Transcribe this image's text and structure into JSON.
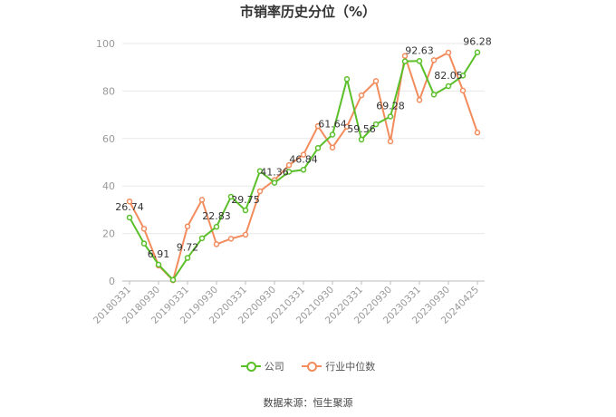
{
  "colors": {
    "company": "#5bbf2a",
    "industry": "#f28c5d",
    "grid": "#e8e8e8",
    "axis": "#bbbbbb",
    "text": "#999999"
  },
  "chart_data": {
    "type": "line",
    "title": "市销率历史分位（%）",
    "ylim": [
      0,
      100
    ],
    "yticks": [
      0,
      20,
      40,
      60,
      80,
      100
    ],
    "tick_labels": [
      "20180331",
      "20180930",
      "20190331",
      "20190930",
      "20200331",
      "20200930",
      "20210331",
      "20210930",
      "20220331",
      "20220930",
      "20230331",
      "20230930",
      "20240425"
    ],
    "series": [
      {
        "name": "公司",
        "values": [
          26.74,
          15.8,
          6.91,
          0.5,
          9.72,
          18.0,
          22.83,
          35.5,
          29.75,
          46.3,
          41.36,
          46.0,
          46.84,
          56.0,
          61.64,
          85.0,
          59.56,
          66.0,
          69.28,
          92.5,
          92.63,
          78.5,
          82.05,
          86.5,
          96.28
        ]
      },
      {
        "name": "行业中位数",
        "values": [
          33.5,
          22.0,
          6.5,
          0.3,
          23.0,
          34.2,
          15.5,
          17.8,
          19.5,
          37.8,
          42.5,
          48.8,
          53.2,
          65.2,
          56.2,
          65.0,
          78.2,
          84.2,
          58.8,
          94.8,
          76.2,
          93.0,
          96.2,
          80.2,
          62.5
        ]
      }
    ],
    "data_labels": [
      {
        "index": 0,
        "text": "26.74"
      },
      {
        "index": 2,
        "text": "6.91"
      },
      {
        "index": 4,
        "text": "9.72"
      },
      {
        "index": 6,
        "text": "22.83"
      },
      {
        "index": 8,
        "text": "29.75"
      },
      {
        "index": 10,
        "text": "41.36"
      },
      {
        "index": 12,
        "text": "46.84"
      },
      {
        "index": 14,
        "text": "61.64"
      },
      {
        "index": 16,
        "text": "59.56"
      },
      {
        "index": 18,
        "text": "69.28"
      },
      {
        "index": 20,
        "text": "92.63"
      },
      {
        "index": 22,
        "text": "82.05"
      },
      {
        "index": 24,
        "text": "96.28"
      }
    ],
    "legend": "bottom-center",
    "grid": true
  },
  "legend": {
    "company": "公司",
    "industry": "行业中位数"
  },
  "source": "数据来源：恒生聚源"
}
